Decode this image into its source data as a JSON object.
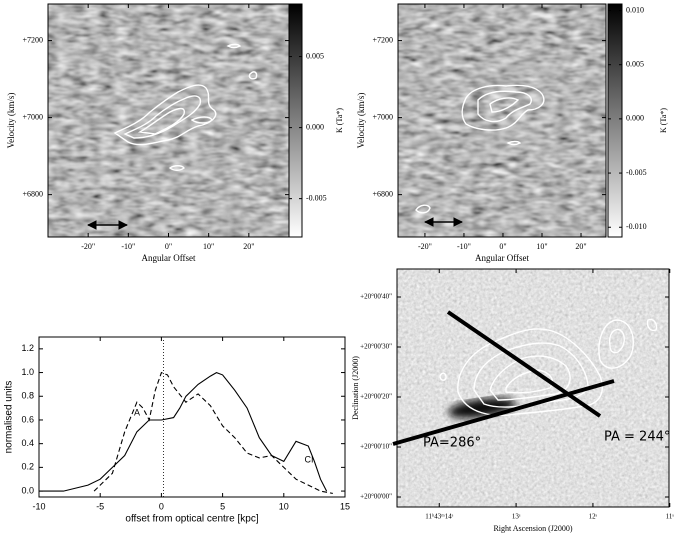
{
  "chart_data": [
    {
      "type": "heatmap",
      "xlabel": "Angular Offset",
      "ylabel": "Velocity (km/s)",
      "colorbar_label": "K (Ta*)",
      "xlim": [
        -30,
        30
      ],
      "ylim": [
        6690,
        7295
      ],
      "clim": [
        -0.0077,
        0.0087
      ],
      "xticks": [
        {
          "value": -20,
          "label": "-20\""
        },
        {
          "value": -10,
          "label": "-10\""
        },
        {
          "value": 0,
          "label": "0\""
        },
        {
          "value": 10,
          "label": "10\""
        },
        {
          "value": 20,
          "label": "20\""
        }
      ],
      "yticks": [
        {
          "value": 6800,
          "label": "+6800"
        },
        {
          "value": 7000,
          "label": "+7000"
        },
        {
          "value": 7200,
          "label": "+7200"
        }
      ],
      "cticks": [
        -0.005,
        {
          "value": 0,
          "label": "0.000"
        },
        0.005
      ]
    },
    {
      "type": "heatmap",
      "xlabel": "Angular Offset",
      "ylabel": "Velocity (km/s)",
      "colorbar_label": "K (Ta*)",
      "xlim": [
        -26.9,
        26.4
      ],
      "ylim": [
        6690,
        7295
      ],
      "clim": [
        -0.0109,
        0.0106
      ],
      "xticks": [
        {
          "value": -20,
          "label": "-20\""
        },
        {
          "value": -10,
          "label": "-10\""
        },
        {
          "value": 0,
          "label": "0\""
        },
        {
          "value": 10,
          "label": "10\""
        },
        {
          "value": 20,
          "label": "20\""
        }
      ],
      "yticks": [
        {
          "value": 6800,
          "label": "+6800"
        },
        {
          "value": 7000,
          "label": "+7000"
        },
        {
          "value": 7200,
          "label": "+7200"
        }
      ],
      "cticks": [
        {
          "value": -0.01,
          "label": "-0.010"
        },
        -0.005,
        {
          "value": 0,
          "label": "0.000"
        },
        0.005,
        {
          "value": 0.01,
          "label": "0.010"
        }
      ]
    },
    {
      "type": "line",
      "xlabel": "offset from optical centre [kpc]",
      "ylabel": "normalised units",
      "xlim": [
        -10,
        15
      ],
      "ylim": [
        -0.05,
        1.3
      ],
      "xticks": [
        -10,
        -5,
        0,
        5,
        10,
        15
      ],
      "yticks": [
        {
          "value": 0,
          "label": "0.0"
        },
        0.2,
        0.4,
        0.6,
        0.8,
        {
          "value": 1,
          "label": "1.0"
        },
        1.2
      ],
      "series": [
        {
          "name": "A",
          "style": "dashed",
          "color": "#000000",
          "x": [
            -5.5,
            -5,
            -4,
            -3,
            -2,
            -1.5,
            -1,
            -0.5,
            0,
            0.5,
            1,
            2,
            3,
            4,
            5,
            6,
            7,
            8,
            9,
            10,
            11,
            12,
            13,
            14
          ],
          "values": [
            0.0,
            0.05,
            0.15,
            0.5,
            0.75,
            0.7,
            0.6,
            0.85,
            1.0,
            0.98,
            0.88,
            0.75,
            0.82,
            0.72,
            0.55,
            0.45,
            0.32,
            0.28,
            0.3,
            0.2,
            0.1,
            0.05,
            0.0,
            -0.02
          ]
        },
        {
          "name": "CI",
          "style": "solid",
          "color": "#000000",
          "x": [
            -10,
            -8,
            -6,
            -5,
            -4,
            -3,
            -2,
            -1,
            0,
            1,
            1.5,
            2,
            3,
            4,
            4.5,
            5,
            6,
            7,
            8,
            9,
            10,
            11,
            12,
            12.5,
            13,
            13.5
          ],
          "values": [
            0.0,
            0.0,
            0.05,
            0.1,
            0.2,
            0.3,
            0.5,
            0.6,
            0.6,
            0.62,
            0.7,
            0.8,
            0.9,
            0.97,
            1.0,
            0.98,
            0.85,
            0.7,
            0.45,
            0.3,
            0.25,
            0.42,
            0.38,
            0.25,
            0.1,
            0.0
          ]
        }
      ]
    },
    {
      "type": "image",
      "xlabel": "Right Ascension (J2000)",
      "ylabel": "Declination (J2000)",
      "xlim": [
        14.55,
        11.01
      ],
      "ylim": [
        -2,
        45.6
      ],
      "xticks": [
        {
          "value": 14,
          "label": "11ʰ43ᵐ14ˢ"
        },
        {
          "value": 13,
          "label": "13ˢ"
        },
        {
          "value": 12,
          "label": "12ˢ"
        },
        {
          "value": 11,
          "label": "11ˢ"
        }
      ],
      "yticks": [
        {
          "value": 0,
          "label": "+20°00'00\""
        },
        {
          "value": 10,
          "label": "+20°00'10\""
        },
        {
          "value": 20,
          "label": "+20°00'20\""
        },
        {
          "value": 30,
          "label": "+20°00'30\""
        },
        {
          "value": 40,
          "label": "+20°00'40\""
        }
      ],
      "annotations": [
        "PA=286°",
        "PA = 244°"
      ]
    }
  ]
}
